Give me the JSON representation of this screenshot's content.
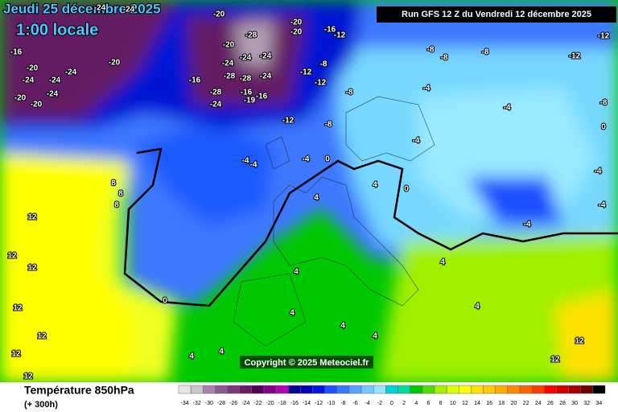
{
  "header": {
    "date": "Jeudi 25 décembre 2025",
    "time": "1:00 locale",
    "run": "Run GFS 12 Z du Vendredi 12 décembre 2025",
    "copyright": "Copyright © 2025 Meteociel.fr"
  },
  "footer": {
    "title": "Température 850hPa",
    "lead": "(+ 300h)"
  },
  "legend": {
    "ticks": [
      -34,
      -32,
      -30,
      -28,
      -26,
      -24,
      -22,
      -20,
      -18,
      -16,
      -14,
      -12,
      -10,
      -8,
      -6,
      -4,
      -2,
      0,
      2,
      4,
      6,
      8,
      10,
      12,
      14,
      16,
      18,
      20,
      22,
      24,
      26,
      28,
      30,
      32,
      34
    ],
    "colors": [
      "#e6e6e6",
      "#c8c8c8",
      "#a882a8",
      "#8c5a8c",
      "#78377a",
      "#641e64",
      "#500050",
      "#820082",
      "#b400b4",
      "#00008c",
      "#0000b4",
      "#0014e6",
      "#1e50ff",
      "#3c78ff",
      "#5aa0ff",
      "#78c8ff",
      "#96e6ff",
      "#00d2d2",
      "#00dc96",
      "#00c800",
      "#50dc00",
      "#a0f000",
      "#dcff00",
      "#ffff00",
      "#ffe100",
      "#ffc800",
      "#ffaa00",
      "#ff8c00",
      "#ff6400",
      "#ff3c00",
      "#ff0000",
      "#d20000",
      "#a00000",
      "#6e0000",
      "#000000"
    ]
  },
  "map": {
    "labels": [
      "-16",
      "-20",
      "-24",
      "-24",
      "-24",
      "-20",
      "-20",
      "-24",
      "-20",
      "-24",
      "-24",
      "-20",
      "-20",
      "-20",
      "-16",
      "-12",
      "-20",
      "-28",
      "-24",
      "-24",
      "-24",
      "-28",
      "-28",
      "-24",
      "-16",
      "-28",
      "-24",
      "-16",
      "-19",
      "-16",
      "-12",
      "-12",
      "-8",
      "-12",
      "-8",
      "-8",
      "-8",
      "-8",
      "-8",
      "-12",
      "-12",
      "-4",
      "-4",
      "-4",
      "-8",
      "-4",
      "-4",
      "-4",
      "0",
      "4",
      "4",
      "0",
      "8",
      "8",
      "8",
      "12",
      "12",
      "12",
      "12",
      "12",
      "12",
      "12",
      "0",
      "4",
      "4",
      "4",
      "4",
      "4",
      "4",
      "4",
      "4",
      "12",
      "12",
      "-4",
      "-4",
      "-4",
      "0"
    ]
  }
}
